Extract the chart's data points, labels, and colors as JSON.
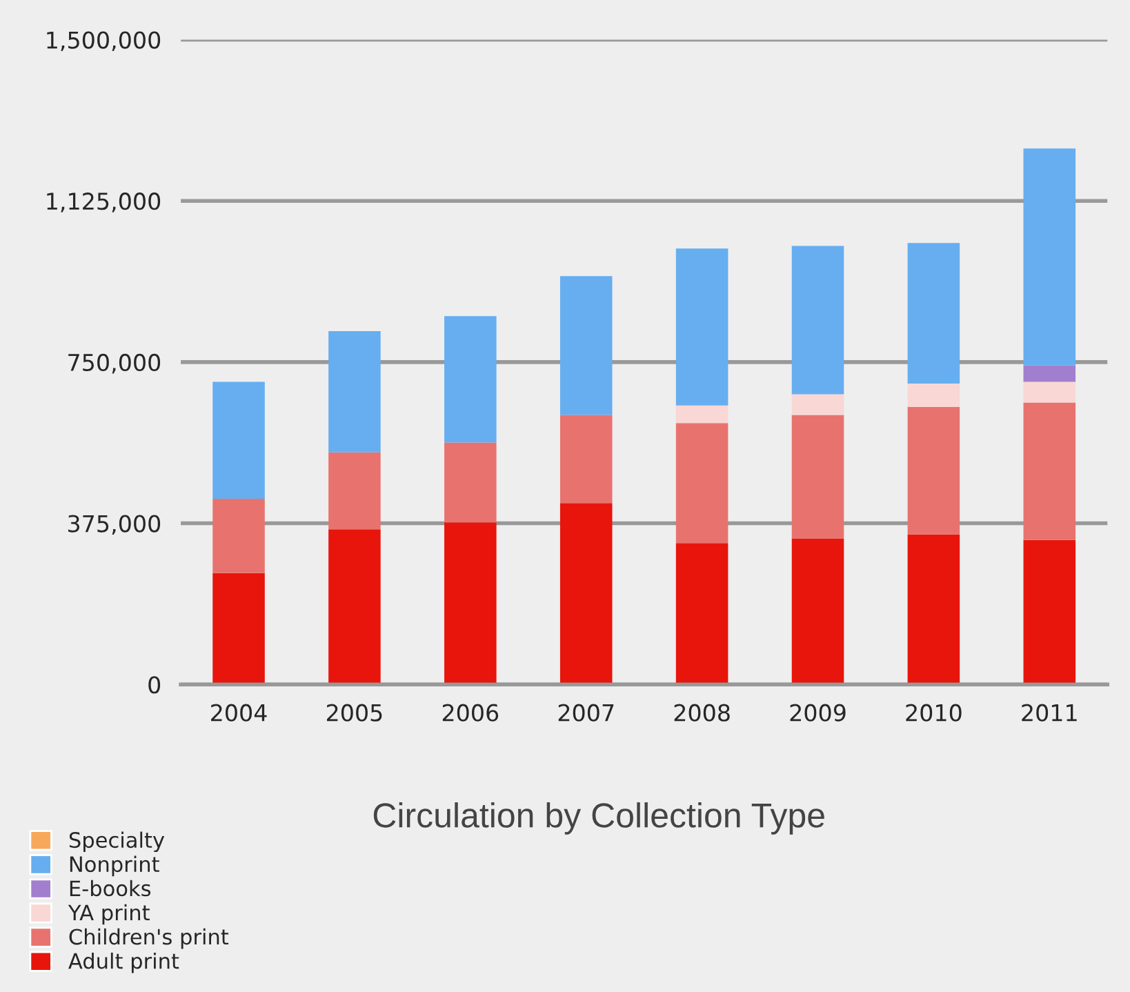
{
  "chart_data": {
    "type": "bar",
    "title": "Circulation by Collection Type",
    "stacked": true,
    "categories": [
      "2004",
      "2005",
      "2006",
      "2007",
      "2008",
      "2009",
      "2010",
      "2011"
    ],
    "series": [
      {
        "name": "Adult print",
        "color": "#e8150c",
        "values": [
          259000,
          361000,
          377000,
          422000,
          329000,
          339000,
          349000,
          336000
        ]
      },
      {
        "name": "Children's print",
        "color": "#e8736e",
        "values": [
          173000,
          179000,
          186000,
          205000,
          279000,
          288000,
          297000,
          320000
        ]
      },
      {
        "name": "YA print",
        "color": "#f9d7d5",
        "values": [
          null,
          null,
          null,
          null,
          41000,
          48000,
          54000,
          48000
        ]
      },
      {
        "name": "E-books",
        "color": "#a17fce",
        "values": [
          null,
          null,
          null,
          null,
          null,
          null,
          null,
          38000
        ]
      },
      {
        "name": "Nonprint",
        "color": "#66aef0",
        "values": [
          272000,
          282000,
          294000,
          323000,
          365000,
          345000,
          327000,
          505000
        ]
      },
      {
        "name": "Specialty",
        "color": "#f8a85a",
        "values": [
          null,
          null,
          null,
          null,
          null,
          null,
          null,
          null
        ]
      }
    ],
    "ylim": [
      0,
      1500000
    ],
    "yticks": [
      {
        "value": 0,
        "label": "0"
      },
      {
        "value": 375000,
        "label": "375,000"
      },
      {
        "value": 750000,
        "label": "750,000"
      },
      {
        "value": 1125000,
        "label": "1,125,000"
      },
      {
        "value": 1500000,
        "label": "1,500,000"
      }
    ],
    "grid": "y",
    "legend": "bottom left"
  }
}
